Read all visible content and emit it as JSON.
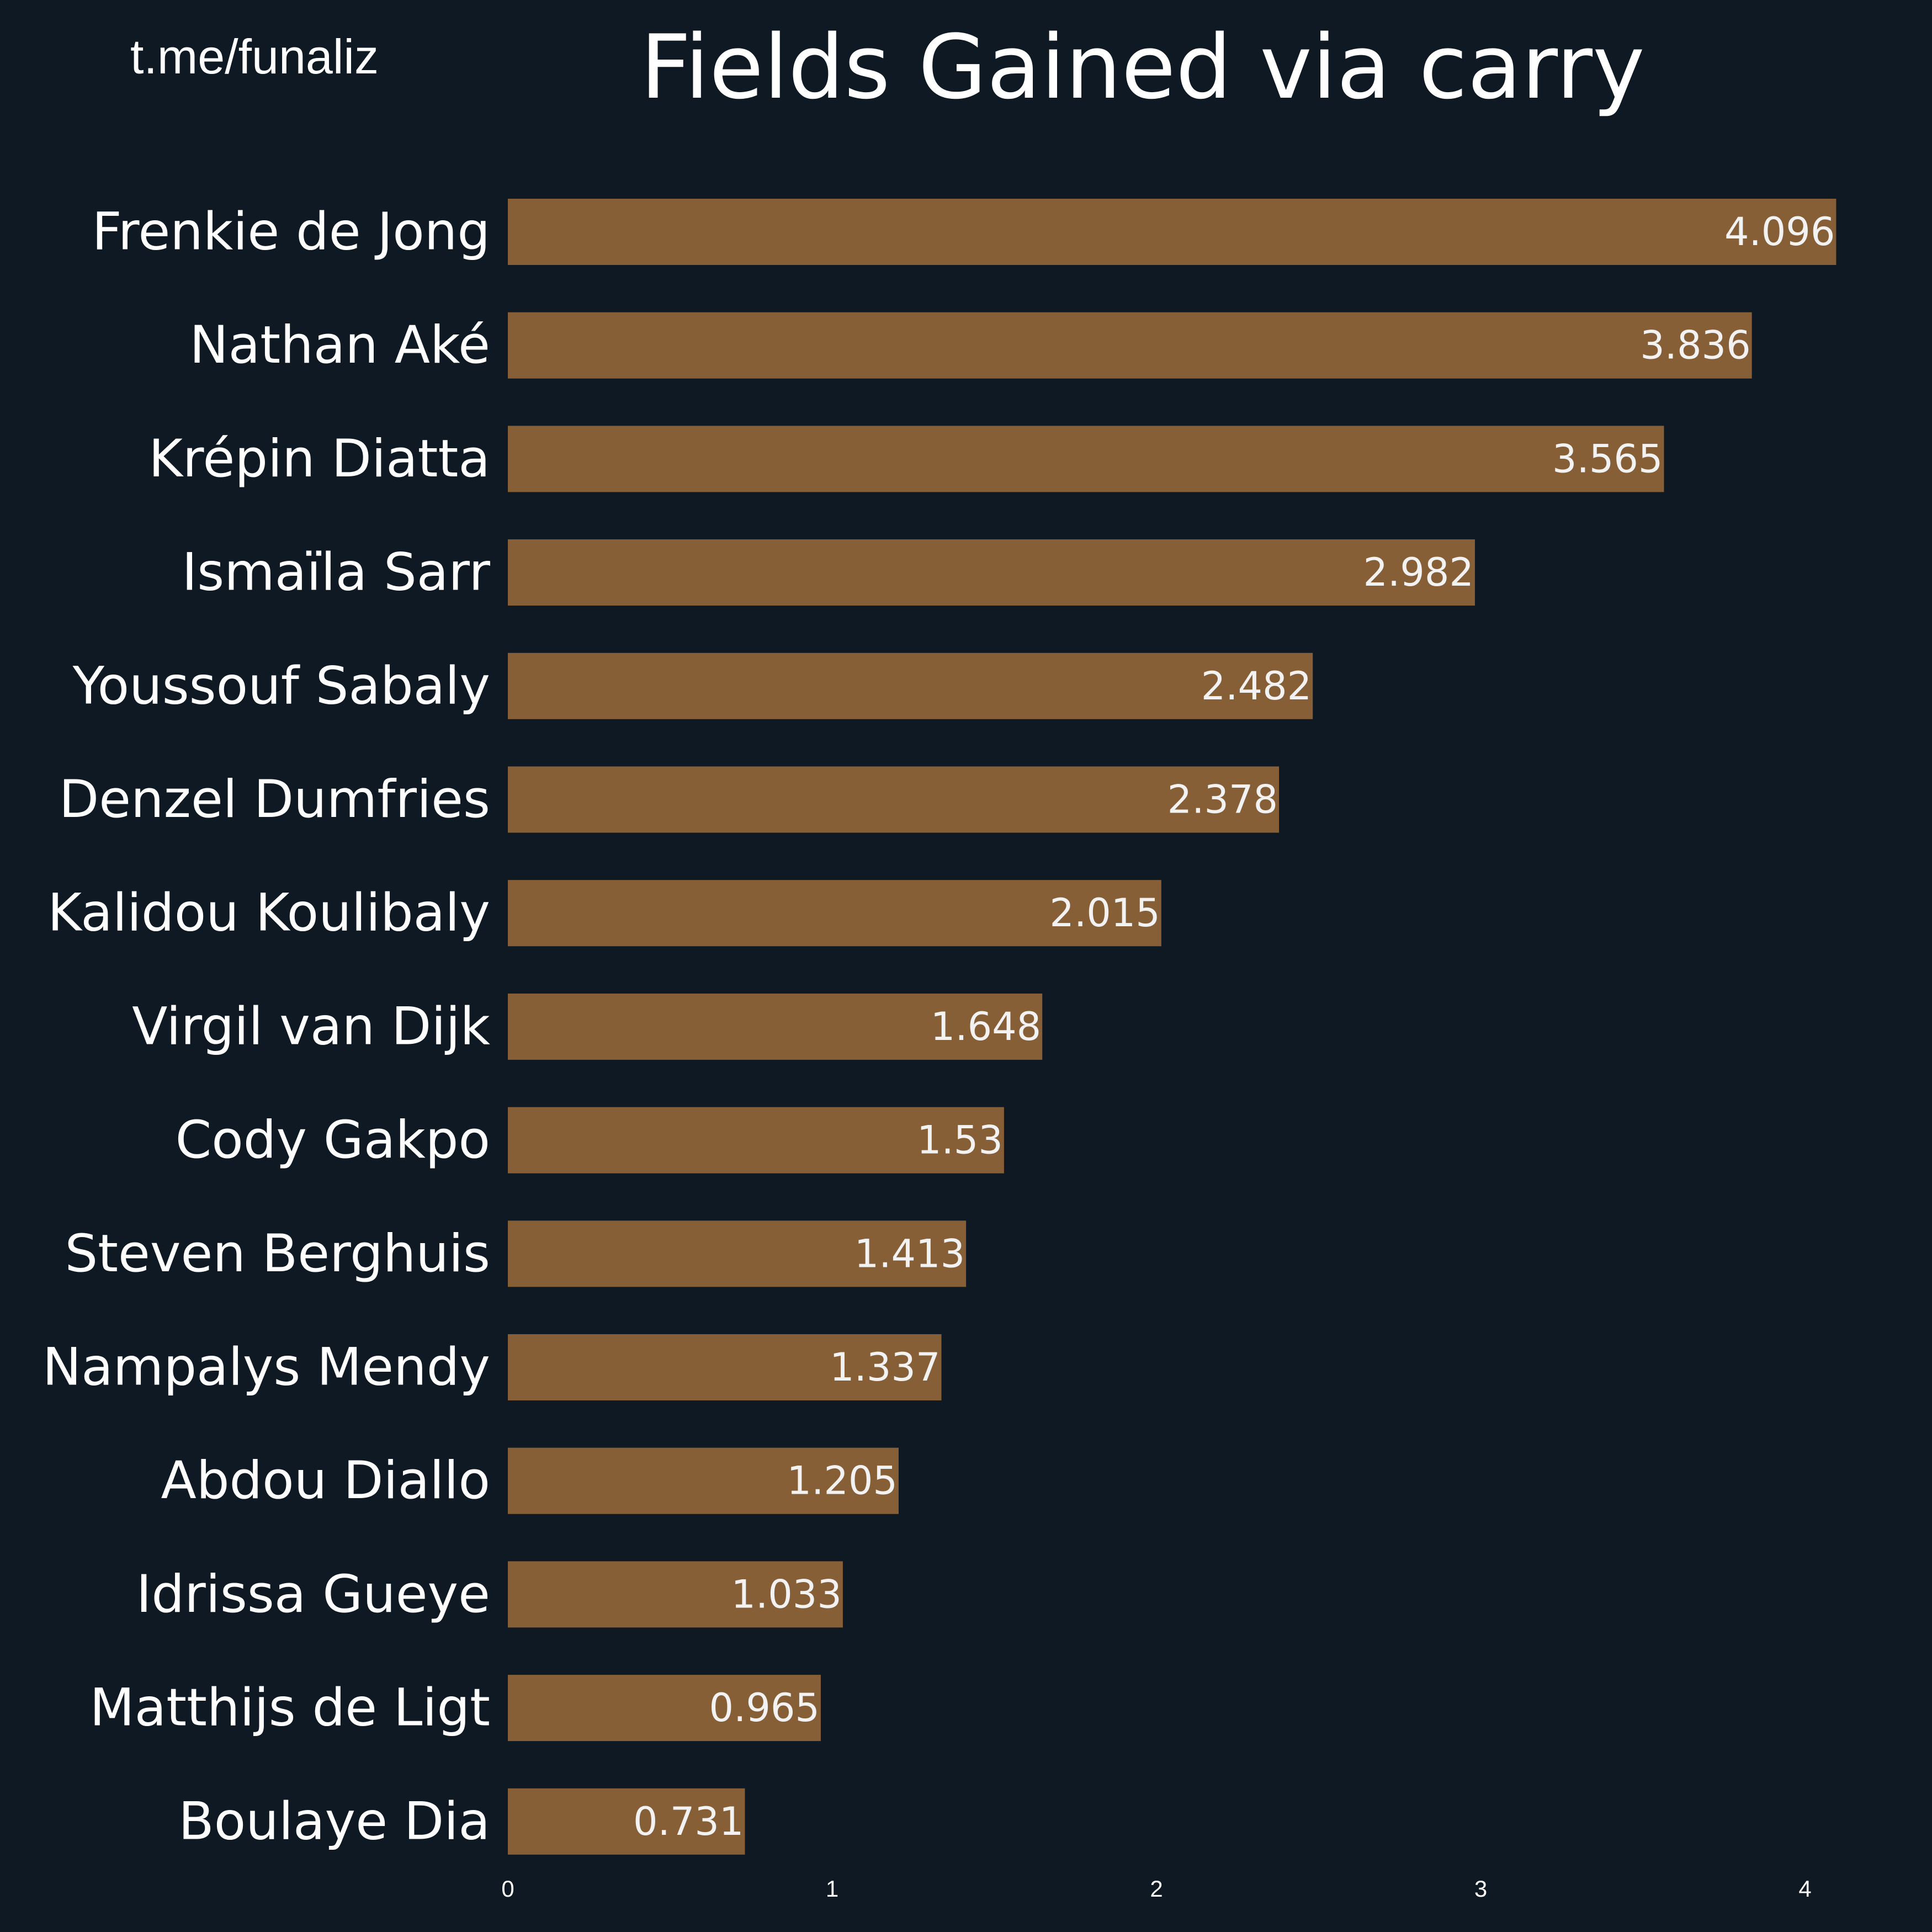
{
  "watermark": "t.me/funaliz",
  "chart_data": {
    "type": "bar",
    "orientation": "horizontal",
    "title": "Fields Gained via carry",
    "categories": [
      "Frenkie de Jong",
      "Nathan Aké",
      "Krépin Diatta",
      "Ismaïla Sarr",
      "Youssouf Sabaly",
      "Denzel Dumfries",
      "Kalidou Koulibaly",
      "Virgil van Dijk",
      "Cody Gakpo",
      "Steven Berghuis",
      "Nampalys Mendy",
      "Abdou Diallo",
      "Idrissa Gueye",
      "Matthijs de Ligt",
      "Boulaye Dia"
    ],
    "values": [
      4.096,
      3.836,
      3.565,
      2.982,
      2.482,
      2.378,
      2.015,
      1.648,
      1.53,
      1.413,
      1.337,
      1.205,
      1.033,
      0.965,
      0.731
    ],
    "value_labels": [
      "4.096",
      "3.836",
      "3.565",
      "2.982",
      "2.482",
      "2.378",
      "2.015",
      "1.648",
      "1.53",
      "1.413",
      "1.337",
      "1.205",
      "1.033",
      "0.965",
      "0.731"
    ],
    "xticks": [
      "0",
      "1",
      "2",
      "3",
      "4"
    ],
    "xlim": [
      0,
      4
    ],
    "xlabel": "",
    "ylabel": "",
    "grid": false,
    "legend": "none",
    "bar_color": "#875f37",
    "background_color": "#0f1923",
    "text_color": "#ffffff"
  }
}
